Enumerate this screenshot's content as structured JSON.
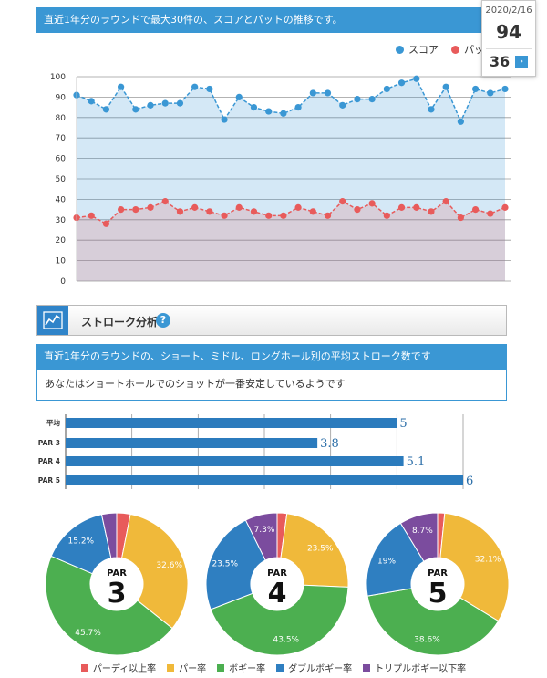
{
  "header": {
    "banner_text": "直近1年分のラウンドで最大30件の、スコアとパットの推移です。"
  },
  "tooltip": {
    "date": "2020/2/16",
    "score": "94",
    "putt": "36",
    "arrow_icon": "chevron-right-icon"
  },
  "colors": {
    "score": "#3a97d4",
    "putt": "#e85b5b",
    "birdie": "#e85b5b",
    "par": "#f0b93a",
    "bogey": "#4caf50",
    "double": "#2f7fc1",
    "triple": "#7b4c9e",
    "bar": "#2b7bbd"
  },
  "section": {
    "title": "ストローク分析",
    "help_icon": "help-icon",
    "chart_icon": "line-chart-icon"
  },
  "stroke_banner": "直近1年分のラウンドの、ショート、ミドル、ロングホール別の平均ストローク数です",
  "stroke_message": "あなたはショートホールでのショットが一番安定しているようです",
  "chart_data": [
    {
      "type": "line",
      "ylim": [
        0,
        100
      ],
      "yticks": [
        0,
        10,
        20,
        30,
        40,
        50,
        60,
        70,
        80,
        90,
        100
      ],
      "grid": true,
      "legend": "top-right",
      "series": [
        {
          "name": "スコア",
          "values": [
            91,
            88,
            84,
            95,
            84,
            86,
            87,
            87,
            95,
            94,
            79,
            90,
            85,
            83,
            82,
            85,
            92,
            92,
            86,
            89,
            89,
            94,
            97,
            99,
            84,
            95,
            78,
            94,
            92,
            94
          ]
        },
        {
          "name": "パット",
          "values": [
            31,
            32,
            28,
            35,
            35,
            36,
            39,
            34,
            36,
            34,
            32,
            36,
            34,
            32,
            32,
            36,
            34,
            32,
            39,
            35,
            38,
            32,
            36,
            36,
            34,
            39,
            31,
            35,
            33,
            36
          ]
        }
      ]
    },
    {
      "type": "bar",
      "categories": [
        "平均",
        "PAR 3",
        "PAR 4",
        "PAR 5"
      ],
      "values": [
        5,
        3.8,
        5.1,
        6
      ],
      "value_labels": [
        "5",
        "3.8",
        "5.1",
        "6"
      ],
      "xlim": [
        0,
        6
      ]
    },
    {
      "type": "pie",
      "title_prefix": "PAR",
      "charts": [
        {
          "par": "3",
          "slices": [
            {
              "name": "パーディ以上率",
              "value": 3.1
            },
            {
              "name": "パー率",
              "value": 32.6,
              "label": "32.6%"
            },
            {
              "name": "ボギー率",
              "value": 45.7,
              "label": "45.7%"
            },
            {
              "name": "ダブルボギー率",
              "value": 15.2,
              "label": "15.2%"
            },
            {
              "name": "トリプルボギー以下率",
              "value": 3.4
            }
          ]
        },
        {
          "par": "4",
          "slices": [
            {
              "name": "パーディ以上率",
              "value": 2.2
            },
            {
              "name": "パー率",
              "value": 23.5,
              "label": "23.5%"
            },
            {
              "name": "ボギー率",
              "value": 43.5,
              "label": "43.5%"
            },
            {
              "name": "ダブルボギー率",
              "value": 23.5,
              "label": "23.5%"
            },
            {
              "name": "トリプルボギー以下率",
              "value": 7.3,
              "label": "7.3%"
            }
          ]
        },
        {
          "par": "5",
          "slices": [
            {
              "name": "パーディ以上率",
              "value": 1.6
            },
            {
              "name": "パー率",
              "value": 32.1,
              "label": "32.1%"
            },
            {
              "name": "ボギー率",
              "value": 38.6,
              "label": "38.6%"
            },
            {
              "name": "ダブルボギー率",
              "value": 19,
              "label": "19%"
            },
            {
              "name": "トリプルボギー以下率",
              "value": 8.7,
              "label": "8.7%"
            }
          ]
        }
      ],
      "legend": [
        "パーディ以上率",
        "パー率",
        "ボギー率",
        "ダブルボギー率",
        "トリプルボギー以下率"
      ]
    }
  ]
}
